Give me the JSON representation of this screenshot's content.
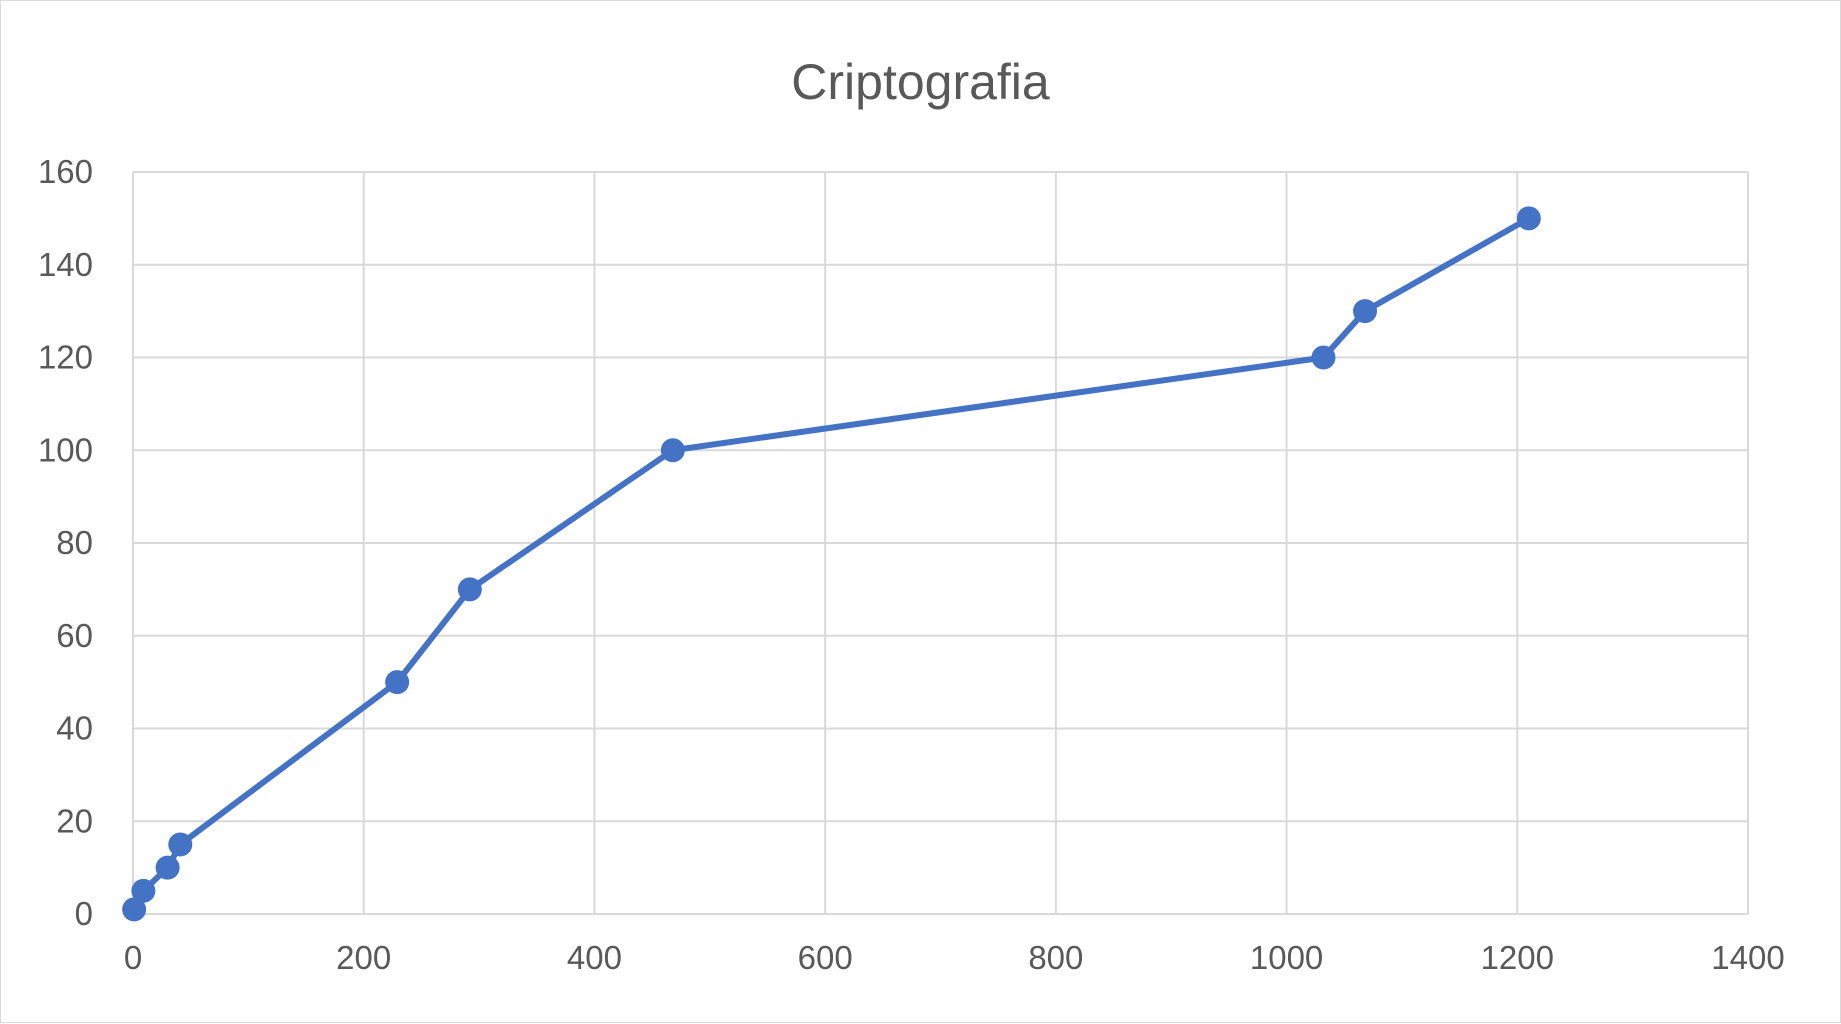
{
  "chart_data": {
    "type": "scatter",
    "title": "Criptografia",
    "xlabel": "",
    "ylabel": "",
    "xlim": [
      0,
      1400
    ],
    "ylim": [
      0,
      160
    ],
    "x_ticks": [
      0,
      200,
      400,
      600,
      800,
      1000,
      1200,
      1400
    ],
    "y_ticks": [
      0,
      20,
      40,
      60,
      80,
      100,
      120,
      140,
      160
    ],
    "grid": true,
    "legend": "none",
    "series": [
      {
        "color": "#4472C4",
        "points": [
          {
            "x": 1,
            "y": 1
          },
          {
            "x": 9,
            "y": 5
          },
          {
            "x": 30,
            "y": 10
          },
          {
            "x": 41,
            "y": 15
          },
          {
            "x": 229,
            "y": 50
          },
          {
            "x": 292,
            "y": 70
          },
          {
            "x": 468,
            "y": 100
          },
          {
            "x": 1032,
            "y": 120
          },
          {
            "x": 1068,
            "y": 130
          },
          {
            "x": 1210,
            "y": 150
          }
        ]
      }
    ]
  }
}
